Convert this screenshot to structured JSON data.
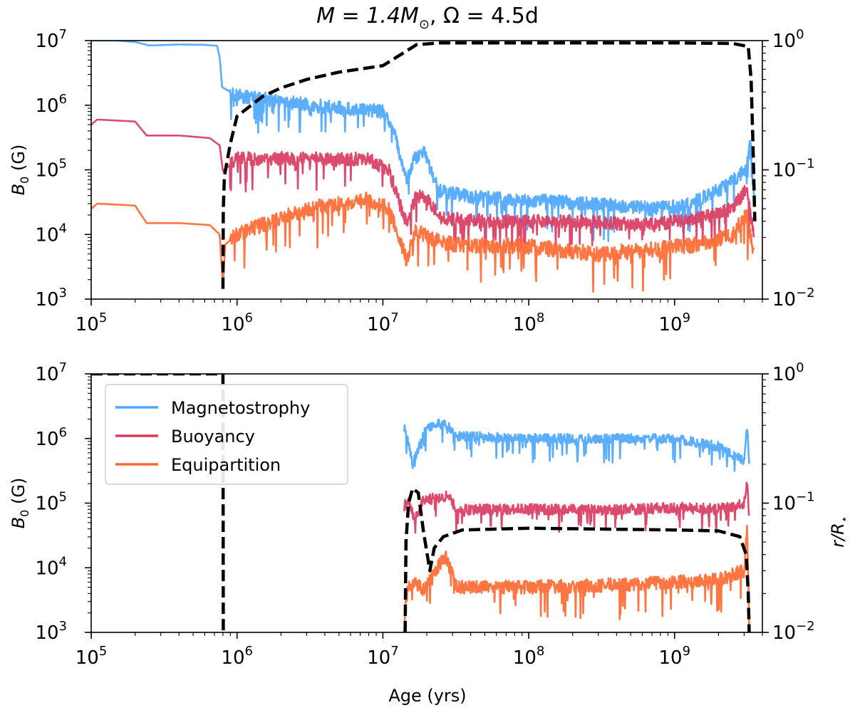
{
  "figure": {
    "title": {
      "base": "M = 1.4M",
      "sub": "⊙",
      "rest": ", Ω = 4.5d"
    },
    "xlabel": "Age (yrs)"
  },
  "chart_data": [
    {
      "type": "line",
      "panel": "top",
      "xscale": "log",
      "xlim": [
        100000,
        4000000000
      ],
      "xticks": [
        100000,
        1000000,
        10000000,
        100000000,
        1000000000
      ],
      "xtick_labels": [
        [
          "10",
          "5"
        ],
        [
          "10",
          "6"
        ],
        [
          "10",
          "7"
        ],
        [
          "10",
          "8"
        ],
        [
          "10",
          "9"
        ]
      ],
      "ylabel": "B0 (G)",
      "ylabel_base": "B",
      "ylabel_sub": "0",
      "ylabel_rest": " (G)",
      "yscale": "log",
      "ylim": [
        1000,
        10000000
      ],
      "yticks": [
        1000,
        10000,
        100000,
        1000000,
        10000000
      ],
      "ytick_labels": [
        [
          "10",
          "3"
        ],
        [
          "10",
          "4"
        ],
        [
          "10",
          "5"
        ],
        [
          "10",
          "6"
        ],
        [
          "10",
          "7"
        ]
      ],
      "y2label": "",
      "y2lim": [
        0.01,
        1
      ],
      "y2ticks": [
        0.01,
        0.1,
        1
      ],
      "y2tick_labels": [
        [
          "10",
          "−2"
        ],
        [
          "10",
          "−1"
        ],
        [
          "10",
          "0"
        ]
      ],
      "series": [
        {
          "name": "Magnetostrophy",
          "color": "#4da6ff",
          "axis": "left",
          "noise": 0.35,
          "points": [
            [
              100000,
              10000000
            ],
            [
              150000,
              10000000
            ],
            [
              200000,
              9500000
            ],
            [
              250000,
              8400000
            ],
            [
              400000,
              8700000
            ],
            [
              600000,
              8600000
            ],
            [
              730000,
              8300000
            ],
            [
              760000,
              5500000
            ],
            [
              790000,
              1900000
            ],
            [
              1000000,
              1400000
            ],
            [
              2000000,
              1150000
            ],
            [
              4000000,
              950000
            ],
            [
              7000000,
              850000
            ],
            [
              10000000,
              800000
            ],
            [
              12000000,
              380000
            ],
            [
              14500000,
              65000
            ],
            [
              16500000,
              150000
            ],
            [
              19000000,
              200000
            ],
            [
              24000000,
              48000
            ],
            [
              40000000,
              38000
            ],
            [
              100000000,
              34000
            ],
            [
              300000000,
              30000
            ],
            [
              700000000,
              25000
            ],
            [
              1200000000,
              28000
            ],
            [
              2200000000,
              55000
            ],
            [
              3100000000,
              100000
            ],
            [
              3300000000,
              300000
            ],
            [
              3500000000,
              45000
            ]
          ]
        },
        {
          "name": "Buoyancy",
          "color": "#d93c61",
          "axis": "left",
          "noise": 0.35,
          "points": [
            [
              100000,
              500000
            ],
            [
              110000,
              600000
            ],
            [
              200000,
              560000
            ],
            [
              240000,
              340000
            ],
            [
              400000,
              340000
            ],
            [
              650000,
              310000
            ],
            [
              760000,
              240000
            ],
            [
              800000,
              95000
            ],
            [
              1000000,
              150000
            ],
            [
              3000000,
              150000
            ],
            [
              8000000,
              145000
            ],
            [
              11000000,
              100000
            ],
            [
              14500000,
              15000
            ],
            [
              17000000,
              40000
            ],
            [
              20000000,
              35000
            ],
            [
              25000000,
              18000
            ],
            [
              60000000,
              16000
            ],
            [
              200000000,
              16000
            ],
            [
              700000000,
              14000
            ],
            [
              1500000000,
              18000
            ],
            [
              2500000000,
              25000
            ],
            [
              3100000000,
              50000
            ],
            [
              3500000000,
              10000
            ]
          ]
        },
        {
          "name": "Equipartition",
          "color": "#ff6a33",
          "axis": "left",
          "noise": 0.4,
          "points": [
            [
              100000,
              25000
            ],
            [
              110000,
              30000
            ],
            [
              200000,
              28000
            ],
            [
              240000,
              15000
            ],
            [
              400000,
              15000
            ],
            [
              650000,
              14000
            ],
            [
              760000,
              10000
            ],
            [
              800000,
              1600
            ],
            [
              830000,
              7000
            ],
            [
              1000000,
              10000
            ],
            [
              3000000,
              25000
            ],
            [
              8000000,
              35000
            ],
            [
              11000000,
              25000
            ],
            [
              14500000,
              4000
            ],
            [
              17000000,
              12000
            ],
            [
              20000000,
              9000
            ],
            [
              30000000,
              7000
            ],
            [
              100000000,
              6500
            ],
            [
              300000000,
              5000
            ],
            [
              800000000,
              6000
            ],
            [
              1500000000,
              7000
            ],
            [
              2500000000,
              10000
            ],
            [
              3100000000,
              20000
            ],
            [
              3500000000,
              5000
            ]
          ]
        },
        {
          "name": "r/R⋆",
          "color": "#000000",
          "axis": "right",
          "dashed": true,
          "noise": 0,
          "points": [
            [
              800000,
              0.012
            ],
            [
              805000,
              0.05
            ],
            [
              820000,
              0.09
            ],
            [
              900000,
              0.16
            ],
            [
              1000000,
              0.26
            ],
            [
              1500000,
              0.37
            ],
            [
              2000000,
              0.43
            ],
            [
              3000000,
              0.5
            ],
            [
              5000000,
              0.57
            ],
            [
              10000000,
              0.64
            ],
            [
              15000000,
              0.85
            ],
            [
              17000000,
              0.93
            ],
            [
              25000000,
              0.96
            ],
            [
              100000000,
              0.96
            ],
            [
              1000000000,
              0.96
            ],
            [
              2500000000,
              0.95
            ],
            [
              3200000000,
              0.9
            ],
            [
              3350000000,
              0.5
            ],
            [
              3450000000,
              0.15
            ],
            [
              3550000000,
              0.04
            ]
          ]
        }
      ]
    },
    {
      "type": "line",
      "panel": "bottom",
      "xscale": "log",
      "xlim": [
        100000,
        4000000000
      ],
      "xticks": [
        100000,
        1000000,
        10000000,
        100000000,
        1000000000
      ],
      "xtick_labels": [
        [
          "10",
          "5"
        ],
        [
          "10",
          "6"
        ],
        [
          "10",
          "7"
        ],
        [
          "10",
          "8"
        ],
        [
          "10",
          "9"
        ]
      ],
      "ylabel": "B0 (G)",
      "ylabel_base": "B",
      "ylabel_sub": "0",
      "ylabel_rest": " (G)",
      "yscale": "log",
      "ylim": [
        1000,
        10000000
      ],
      "yticks": [
        1000,
        10000,
        100000,
        1000000,
        10000000
      ],
      "ytick_labels": [
        [
          "10",
          "3"
        ],
        [
          "10",
          "4"
        ],
        [
          "10",
          "5"
        ],
        [
          "10",
          "6"
        ],
        [
          "10",
          "7"
        ]
      ],
      "y2label": "r/R⋆",
      "y2label_base": "r/R",
      "y2label_sub": "⋆",
      "y2lim": [
        0.01,
        1
      ],
      "y2ticks": [
        0.01,
        0.1,
        1
      ],
      "y2tick_labels": [
        [
          "10",
          "−2"
        ],
        [
          "10",
          "−1"
        ],
        [
          "10",
          "0"
        ]
      ],
      "legend": {
        "location": "upper-left",
        "entries": [
          "Magnetostrophy",
          "Buoyancy",
          "Equipartition"
        ]
      },
      "series": [
        {
          "name": "Magnetostrophy",
          "color": "#4da6ff",
          "axis": "left",
          "noise": 0.25,
          "points": [
            [
              14000000,
              1500000
            ],
            [
              15000000,
              800000
            ],
            [
              16000000,
              400000
            ],
            [
              18000000,
              800000
            ],
            [
              20000000,
              1500000
            ],
            [
              24000000,
              1700000
            ],
            [
              28000000,
              1600000
            ],
            [
              32000000,
              1100000
            ],
            [
              100000000,
              1000000
            ],
            [
              500000000,
              1000000
            ],
            [
              1000000000,
              1000000
            ],
            [
              2000000000,
              750000
            ],
            [
              3000000000,
              450000
            ],
            [
              3150000000,
              1600000
            ],
            [
              3250000000,
              350000
            ]
          ]
        },
        {
          "name": "Buoyancy",
          "color": "#d93c61",
          "axis": "left",
          "noise": 0.28,
          "points": [
            [
              14000000,
              90000
            ],
            [
              15000000,
              110000
            ],
            [
              16500000,
              55000
            ],
            [
              19000000,
              110000
            ],
            [
              24000000,
              120000
            ],
            [
              28000000,
              130000
            ],
            [
              32000000,
              80000
            ],
            [
              100000000,
              80000
            ],
            [
              500000000,
              80000
            ],
            [
              1000000000,
              85000
            ],
            [
              2000000000,
              80000
            ],
            [
              3000000000,
              100000
            ],
            [
              3150000000,
              250000
            ],
            [
              3250000000,
              60000
            ]
          ]
        },
        {
          "name": "Equipartition",
          "color": "#ff6a33",
          "axis": "left",
          "noise": 0.35,
          "points": [
            [
              14000000,
              1200
            ],
            [
              14500000,
              5000
            ],
            [
              16500000,
              6000
            ],
            [
              19000000,
              4500
            ],
            [
              22000000,
              8000
            ],
            [
              27000000,
              15000
            ],
            [
              32000000,
              5000
            ],
            [
              100000000,
              5000
            ],
            [
              500000000,
              5500
            ],
            [
              1000000000,
              6000
            ],
            [
              2000000000,
              6500
            ],
            [
              3000000000,
              9000
            ],
            [
              3150000000,
              40000
            ],
            [
              3250000000,
              1200
            ]
          ]
        },
        {
          "name": "r/R⋆",
          "color": "#000000",
          "axis": "right",
          "dashed": true,
          "noise": 0,
          "segments": [
            [
              [
                100000,
                1
              ],
              [
                795000,
                1
              ],
              [
                800000,
                1
              ],
              [
                805000,
                0.01
              ]
            ],
            [
              [
                14200000,
                0.01
              ],
              [
                14400000,
                0.05
              ],
              [
                15000000,
                0.1
              ],
              [
                16000000,
                0.13
              ],
              [
                17500000,
                0.12
              ],
              [
                19000000,
                0.06
              ],
              [
                21000000,
                0.03
              ],
              [
                22500000,
                0.045
              ],
              [
                26000000,
                0.055
              ],
              [
                35000000,
                0.062
              ],
              [
                100000000,
                0.064
              ],
              [
                1000000000,
                0.062
              ],
              [
                2000000000,
                0.061
              ],
              [
                2800000000,
                0.055
              ],
              [
                3100000000,
                0.04
              ],
              [
                3200000000,
                0.02
              ],
              [
                3250000000,
                0.01
              ]
            ]
          ]
        }
      ]
    }
  ]
}
